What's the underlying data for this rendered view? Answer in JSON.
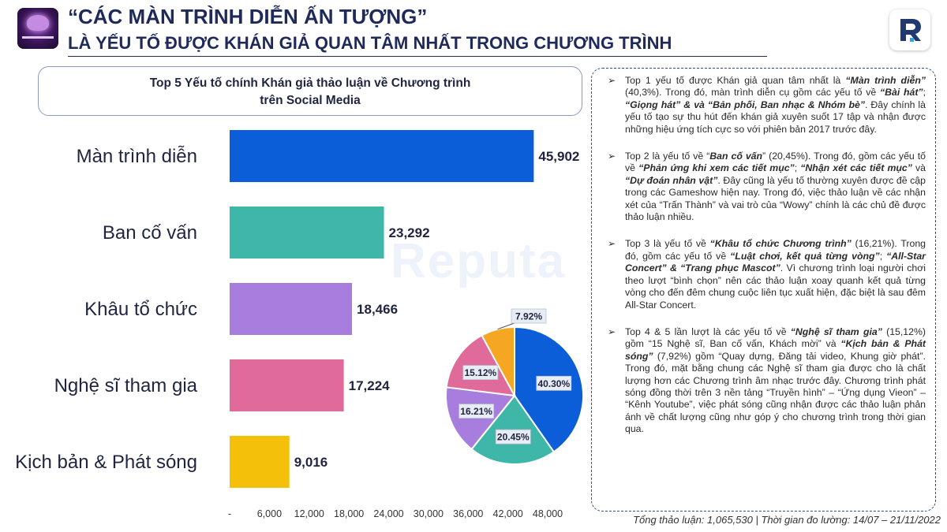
{
  "header": {
    "title_line1": "“CÁC MÀN TRÌNH DIỄN ẤN TƯỢNG”",
    "title_line2": "LÀ YẾU TỐ ĐƯỢC KHÁN GIẢ QUAN TÂM NHẤT TRONG CHƯƠNG TRÌNH"
  },
  "chart_title_line1": "Top 5 Yếu tố chính Khán giả thảo luận về Chương trình",
  "chart_title_line2": "trên Social Media",
  "watermark": "Reputa",
  "chart_data": [
    {
      "type": "bar",
      "orientation": "horizontal",
      "categories": [
        "Màn trình diễn",
        "Ban cố vấn",
        "Khâu tổ chức",
        "Nghệ sĩ tham gia",
        "Kịch bản & Phát sóng"
      ],
      "values": [
        45902,
        23292,
        18466,
        17224,
        9016
      ],
      "value_labels": [
        "45,902",
        "23,292",
        "18,466",
        "17,224",
        "9,016"
      ],
      "colors": [
        "#0b5ed7",
        "#3fb7a8",
        "#a77ddd",
        "#e06a9a",
        "#f5c00a"
      ],
      "xlim": [
        0,
        48000
      ],
      "xticks": [
        0,
        6000,
        12000,
        18000,
        24000,
        30000,
        36000,
        42000,
        48000
      ],
      "xtick_labels": [
        "-",
        "6,000",
        "12,000",
        "18,000",
        "24,000",
        "30,000",
        "36,000",
        "42,000",
        "48,000"
      ],
      "grid": false
    },
    {
      "type": "pie",
      "labels": [
        "40.30%",
        "20.45%",
        "16.21%",
        "15.12%",
        "7.92%"
      ],
      "values": [
        40.3,
        20.45,
        16.21,
        15.12,
        7.92
      ],
      "colors": [
        "#0b5ed7",
        "#3fb7a8",
        "#a77ddd",
        "#e06a9a",
        "#f5a623"
      ]
    }
  ],
  "notes": [
    {
      "parts": [
        {
          "t": "Top 1 yếu tố được Khán giả quan tâm nhất là "
        },
        {
          "t": "“Màn trình diễn”",
          "b": true
        },
        {
          "t": " (40,3%). Trong đó,  màn trình diễn cụ gồm các yếu tố về "
        },
        {
          "t": "“Bài hát”",
          "b": true
        },
        {
          "t": "; "
        },
        {
          "t": "“Giọng hát” & và “Bản phối, Ban nhạc & Nhóm bè”",
          "b": true
        },
        {
          "t": ". Đây chính là yếu tố tạo sự thu hút đến khán giả xuyên suốt 17 tập và nhận được những hiệu ứng tích cực so với phiên bản 2017 trước đây."
        }
      ]
    },
    {
      "parts": [
        {
          "t": "Top 2 là yếu tố về “"
        },
        {
          "t": "Ban cố vấn",
          "b": true
        },
        {
          "t": "” (20,45%). Trong đó, gồm các yếu tố về "
        },
        {
          "t": "“Phản ứng khi xem các tiết mục”",
          "b": true
        },
        {
          "t": "; "
        },
        {
          "t": "“Nhận xét các tiết mục”",
          "b": true
        },
        {
          "t": " và "
        },
        {
          "t": "“Dự đoán nhân vật”",
          "b": true
        },
        {
          "t": ". Đây cũng là yếu tố thường xuyên được đề cập trong các Gameshow hiện nay. Trong đó, việc thảo luận về các nhận xét của “Trấn Thành” và vai trò của “Wowy” chính là các chủ đề được thảo luận nhiều."
        }
      ]
    },
    {
      "parts": [
        {
          "t": "Top 3 là yếu tố về "
        },
        {
          "t": "“Khâu tổ chức Chương trình”",
          "b": true
        },
        {
          "t": " (16,21%). Trong đó, gồm các yếu tố về "
        },
        {
          "t": "“Luật chơi, kết quả từng vòng”",
          "b": true
        },
        {
          "t": "; "
        },
        {
          "t": "“All-Star Concert” & “Trang phục Mascot”",
          "b": true
        },
        {
          "t": ". Vì chương trình loại người chơi theo lượt “bình chọn” nên các thảo luận xoay quanh kết quả từng vòng cho đến đêm chung cuộc liên tục xuất hiện, đặc biệt là sau đêm All-Star Concert."
        }
      ]
    },
    {
      "parts": [
        {
          "t": "Top 4 & 5 lần lượt là các yếu tố về "
        },
        {
          "t": "“Nghệ sĩ tham gia”",
          "b": true
        },
        {
          "t": " (15,12%) gồm “15 Nghệ sĩ, Ban cố vấn, Khách mời” và "
        },
        {
          "t": "“Kịch bản & Phát sóng”",
          "b": true
        },
        {
          "t": " (7,92%) gồm “Quay dựng, Đăng tải video, Khung giờ phát”. Trong đó, mặt bằng chung các Nghệ sĩ tham gia được cho là chất lượng hơn các Chương trình âm nhạc trước đây. Chương trình phát sóng đồng thời trên 3 nền tảng “Truyền hình” – “Ứng dụng Vieon” – “Kênh Youtube”, việc phát sóng cũng nhận được các thảo luận phản ánh về chất lượng cũng như góp ý cho chương trình trong thời gian qua."
        }
      ]
    }
  ],
  "bullet": "➢",
  "footer": "Tổng thảo luận: 1,065,530 | Thời gian đo lường: 14/07 – 21/11/2022"
}
